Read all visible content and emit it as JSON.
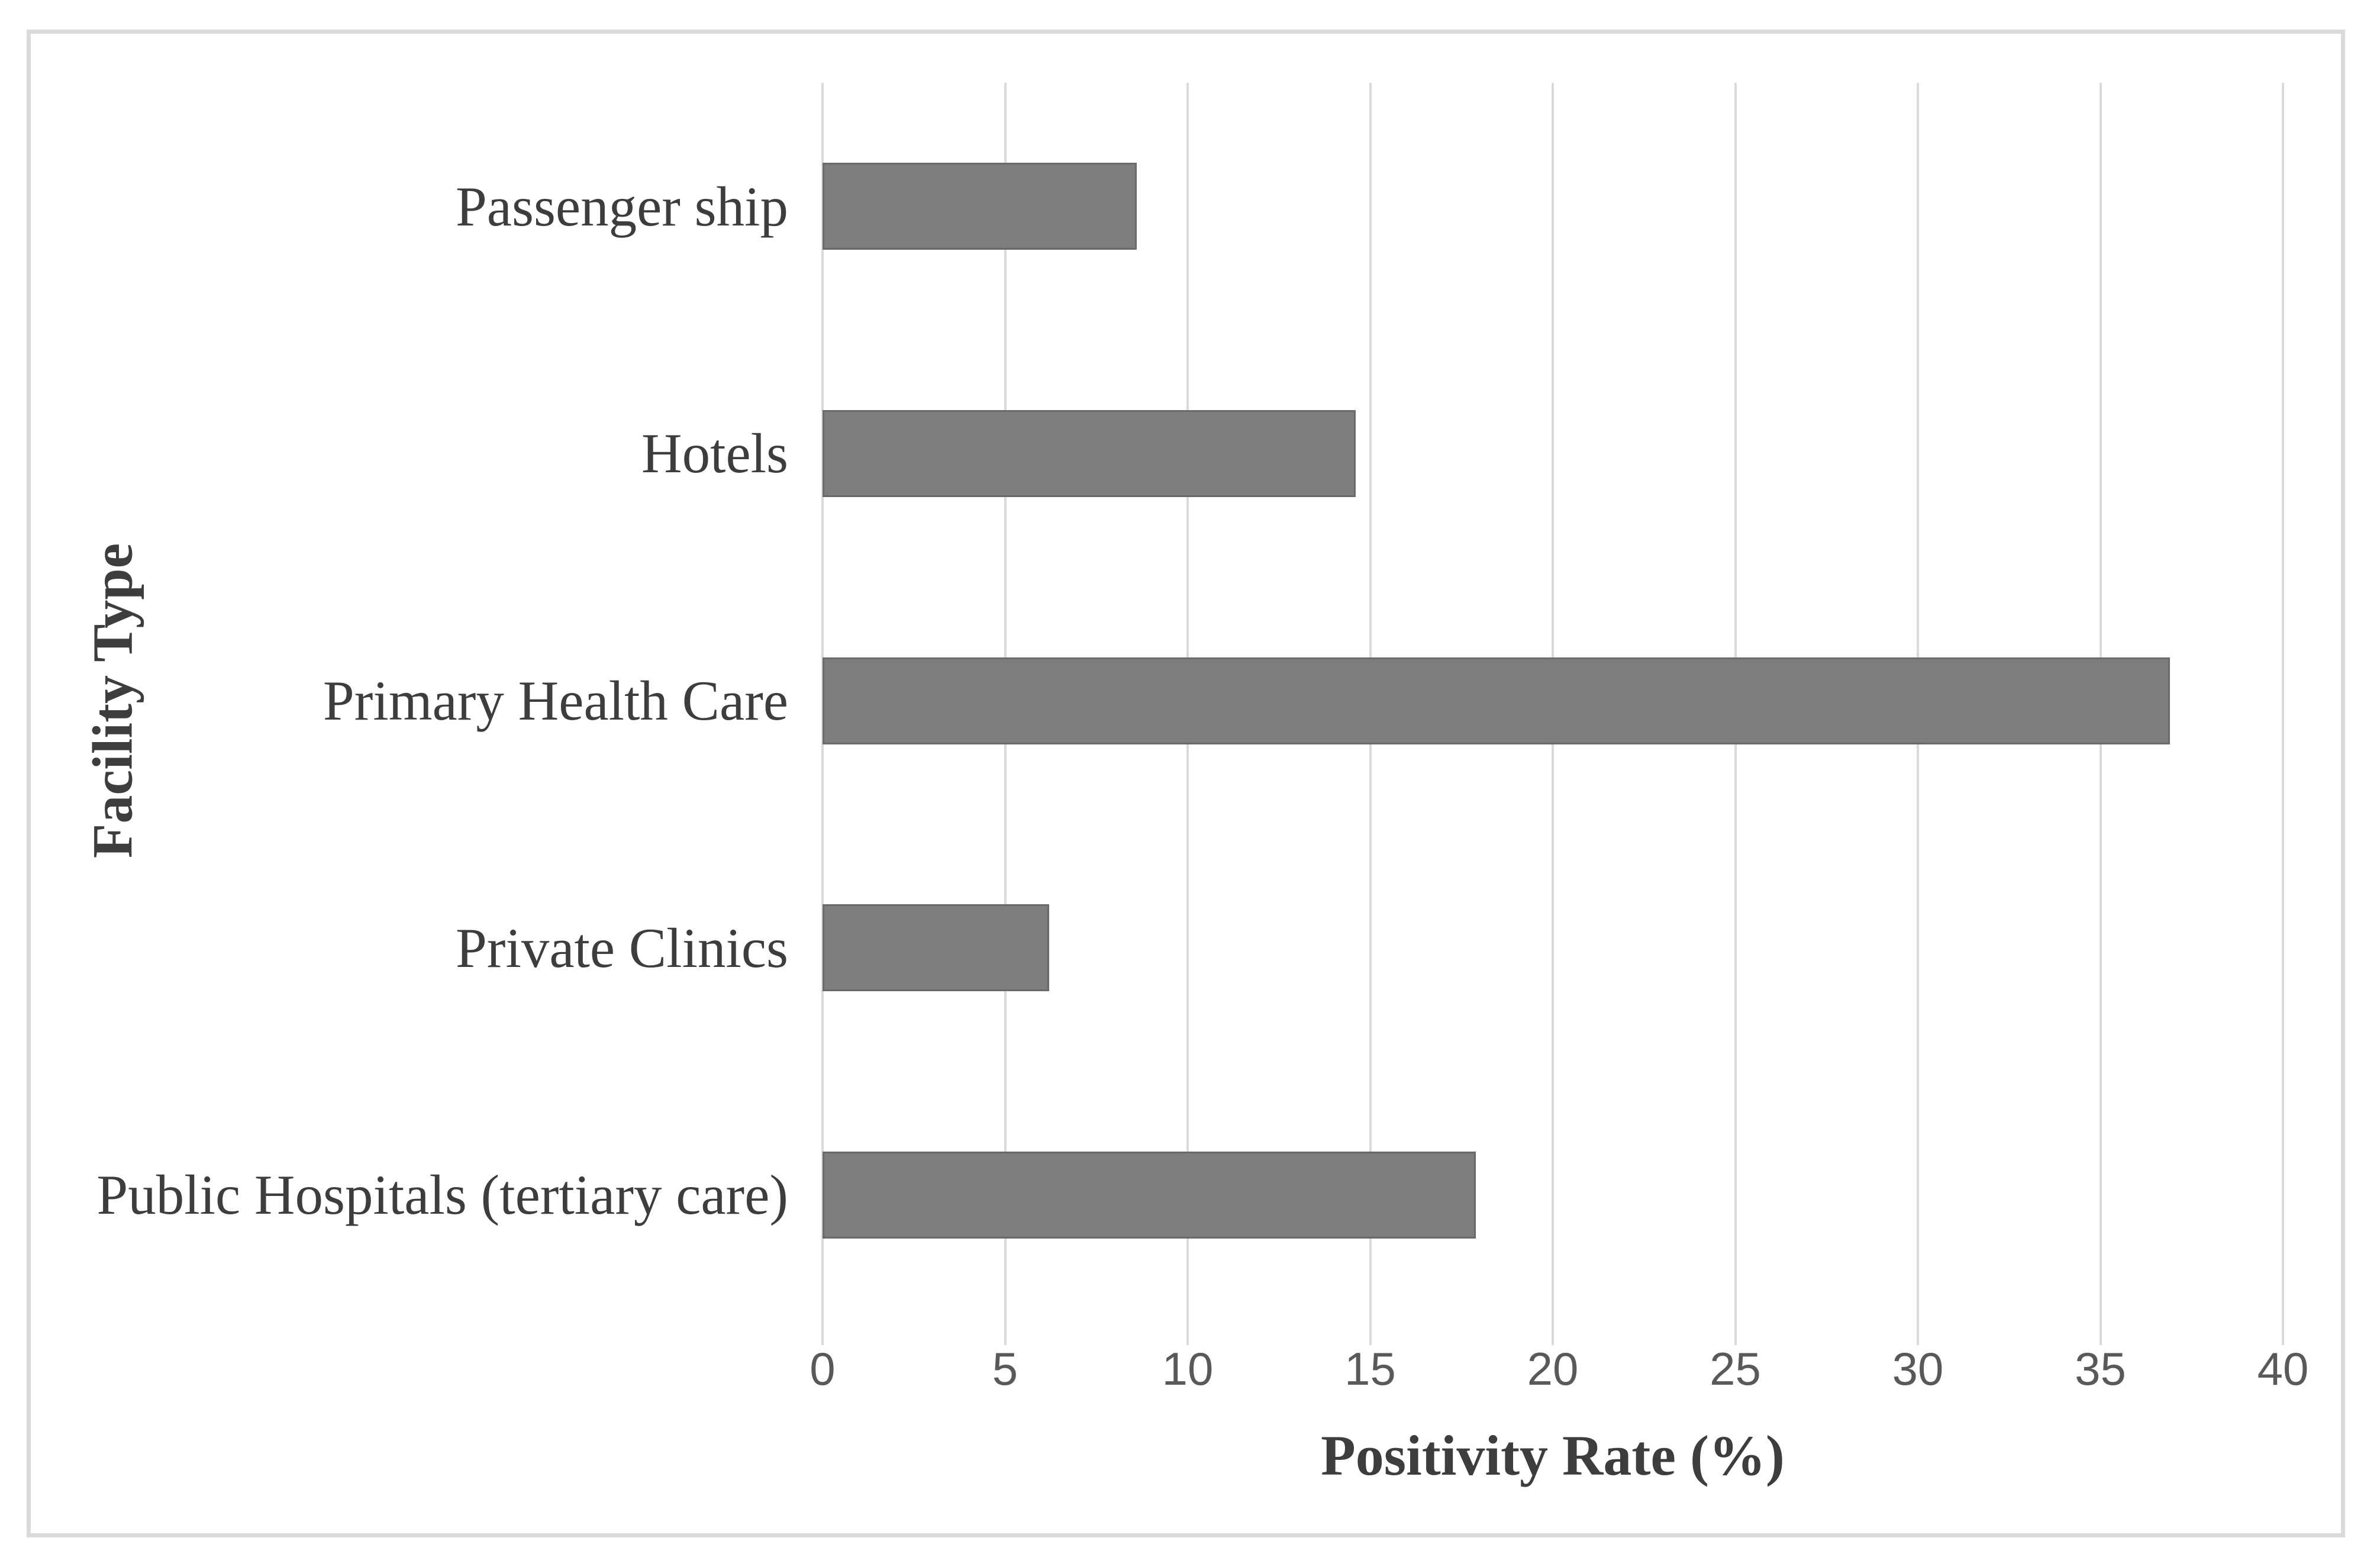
{
  "figure": {
    "background": "#ffffff",
    "border_color": "#d9d9d9"
  },
  "chart_data": {
    "type": "bar",
    "orientation": "horizontal",
    "title": "",
    "xlabel": "Positivity Rate (%)",
    "ylabel": "Facility Type",
    "categories": [
      "Passenger ship",
      "Hotels",
      "Primary Health Care",
      "Private Clinics",
      "Public Hospitals (tertiary care)"
    ],
    "values": [
      8.6,
      14.6,
      36.9,
      6.2,
      17.9
    ],
    "xlim": [
      0,
      40
    ],
    "xticks": [
      0,
      5,
      10,
      15,
      20,
      25,
      30,
      35,
      40
    ],
    "grid": "vertical-major-gridlines",
    "legend": "none",
    "bar_color": "#7d7d7d",
    "bar_border_color": "#6a6a6a",
    "gridline_color": "#d9d9d9",
    "tick_label_color": "#595959",
    "category_label_color": "#3d3d3d",
    "axis_title_color": "#3d3d3d"
  }
}
